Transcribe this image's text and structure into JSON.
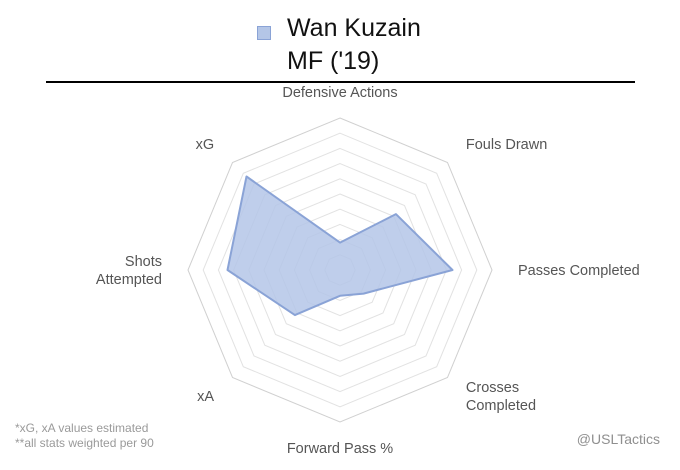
{
  "header": {
    "player_name": "Wan Kuzain",
    "subtitle": "MF ('19)",
    "series_color": "#b4c6e7",
    "series_border": "#8aa3d6"
  },
  "chart_data": {
    "type": "radar",
    "series": [
      {
        "name": "Wan Kuzain",
        "values": [
          0.18,
          0.52,
          0.74,
          0.22,
          0.17,
          0.42,
          0.74,
          0.87
        ]
      }
    ],
    "axes": [
      [
        "Defensive Actions"
      ],
      [
        "Fouls Drawn"
      ],
      [
        "Passes Completed"
      ],
      [
        "Crosses",
        "Completed"
      ],
      [
        "Forward Pass %"
      ],
      [
        "xA"
      ],
      [
        "Shots",
        "Attempted"
      ],
      [
        "xG"
      ]
    ],
    "range": [
      0,
      1
    ],
    "gridlines": 10,
    "grid": true
  },
  "footnotes": {
    "line1": "*xG, xA values estimated",
    "line2": "**all stats weighted per 90"
  },
  "credit": "@USLTactics"
}
